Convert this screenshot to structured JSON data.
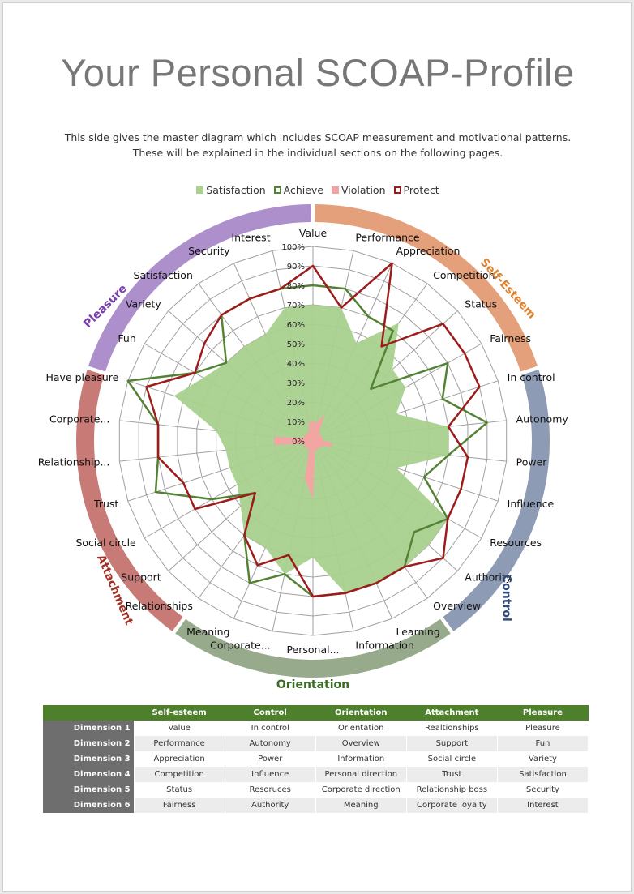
{
  "title": "Your Personal SCOAP-Profile",
  "intro": [
    "This side gives the master diagram which includes SCOAP measurement and motivational patterns.",
    "These will be explained in the individual sections on the following pages."
  ],
  "chart_data": {
    "type": "radar",
    "axis_ticks": [
      "0%",
      "10%",
      "20%",
      "30%",
      "40%",
      "50%",
      "60%",
      "70%",
      "80%",
      "90%",
      "100%"
    ],
    "ylim": [
      0,
      100
    ],
    "grid": true,
    "legend": "top",
    "categories": [
      "Value",
      "Performance",
      "Appreciation",
      "Competition",
      "Status",
      "Fairness",
      "In control",
      "Autonomy",
      "Power",
      "Influence",
      "Resources",
      "Authority",
      "Overview",
      "Learning",
      "Information",
      "Personal...",
      "Corporate...",
      "Meaning",
      "Relationships",
      "Support",
      "Social circle",
      "Trust",
      "Relationship...",
      "Corporate...",
      "Have pleasure",
      "Fun",
      "Variety",
      "Satisfaction",
      "Security",
      "Interest"
    ],
    "series": [
      {
        "name": "Satisfaction",
        "color": "#a9d18e",
        "values": [
          70,
          70,
          55,
          75,
          55,
          55,
          45,
          70,
          70,
          45,
          80,
          80,
          80,
          80,
          80,
          60,
          70,
          60,
          60,
          50,
          45,
          45,
          45,
          50,
          75,
          65,
          60,
          60,
          60,
          70
        ]
      },
      {
        "name": "Achieve",
        "color": "#548235",
        "values": [
          80,
          80,
          70,
          70,
          40,
          80,
          70,
          90,
          70,
          60,
          80,
          70,
          80,
          80,
          80,
          80,
          70,
          80,
          60,
          40,
          60,
          85,
          80,
          80,
          100,
          70,
          60,
          80,
          80,
          80
        ]
      },
      {
        "name": "Violation",
        "color": "#f4a3a3",
        "values": [
          10,
          10,
          15,
          5,
          5,
          5,
          5,
          5,
          10,
          10,
          5,
          5,
          5,
          5,
          5,
          30,
          20,
          5,
          5,
          5,
          5,
          5,
          20,
          20,
          5,
          5,
          5,
          5,
          5,
          10
        ]
      },
      {
        "name": "Protect",
        "color": "#9c1c1c",
        "values": [
          90,
          70,
          100,
          60,
          90,
          90,
          90,
          70,
          80,
          80,
          80,
          90,
          80,
          80,
          80,
          80,
          60,
          70,
          60,
          40,
          70,
          70,
          80,
          80,
          90,
          70,
          75,
          80,
          80,
          80
        ]
      }
    ],
    "sections": [
      {
        "label": "Self-Esteem",
        "color": "#e3a07a",
        "text_color": "#e0822f"
      },
      {
        "label": "Control",
        "color": "#8e9bb5",
        "text_color": "#2f4a80"
      },
      {
        "label": "Orientation",
        "color": "#98aa8c",
        "text_color": "#3b6b25"
      },
      {
        "label": "Attachment",
        "color": "#c77a76",
        "text_color": "#a33024"
      },
      {
        "label": "Pleasure",
        "color": "#ad8fcc",
        "text_color": "#7a3fb0"
      }
    ]
  },
  "table": {
    "headers": [
      "",
      "Self-esteem",
      "Control",
      "Orientation",
      "Attachment",
      "Pleasure"
    ],
    "rows": [
      {
        "label": "Dimension 1",
        "cells": [
          "Value",
          "In control",
          "Orientation",
          "Realtionships",
          "Pleasure"
        ]
      },
      {
        "label": "Dimension 2",
        "cells": [
          "Performance",
          "Autonomy",
          "Overview",
          "Support",
          "Fun"
        ]
      },
      {
        "label": "Dimension 3",
        "cells": [
          "Appreciation",
          "Power",
          "Information",
          "Social circle",
          "Variety"
        ]
      },
      {
        "label": "Dimension 4",
        "cells": [
          "Competition",
          "Influence",
          "Personal direction",
          "Trust",
          "Satisfaction"
        ]
      },
      {
        "label": "Dimension 5",
        "cells": [
          "Status",
          "Resoruces",
          "Corporate direction",
          "Relationship boss",
          "Security"
        ]
      },
      {
        "label": "Dimension 6",
        "cells": [
          "Fairness",
          "Authority",
          "Meaning",
          "Corporate loyalty",
          "Interest"
        ]
      }
    ]
  }
}
